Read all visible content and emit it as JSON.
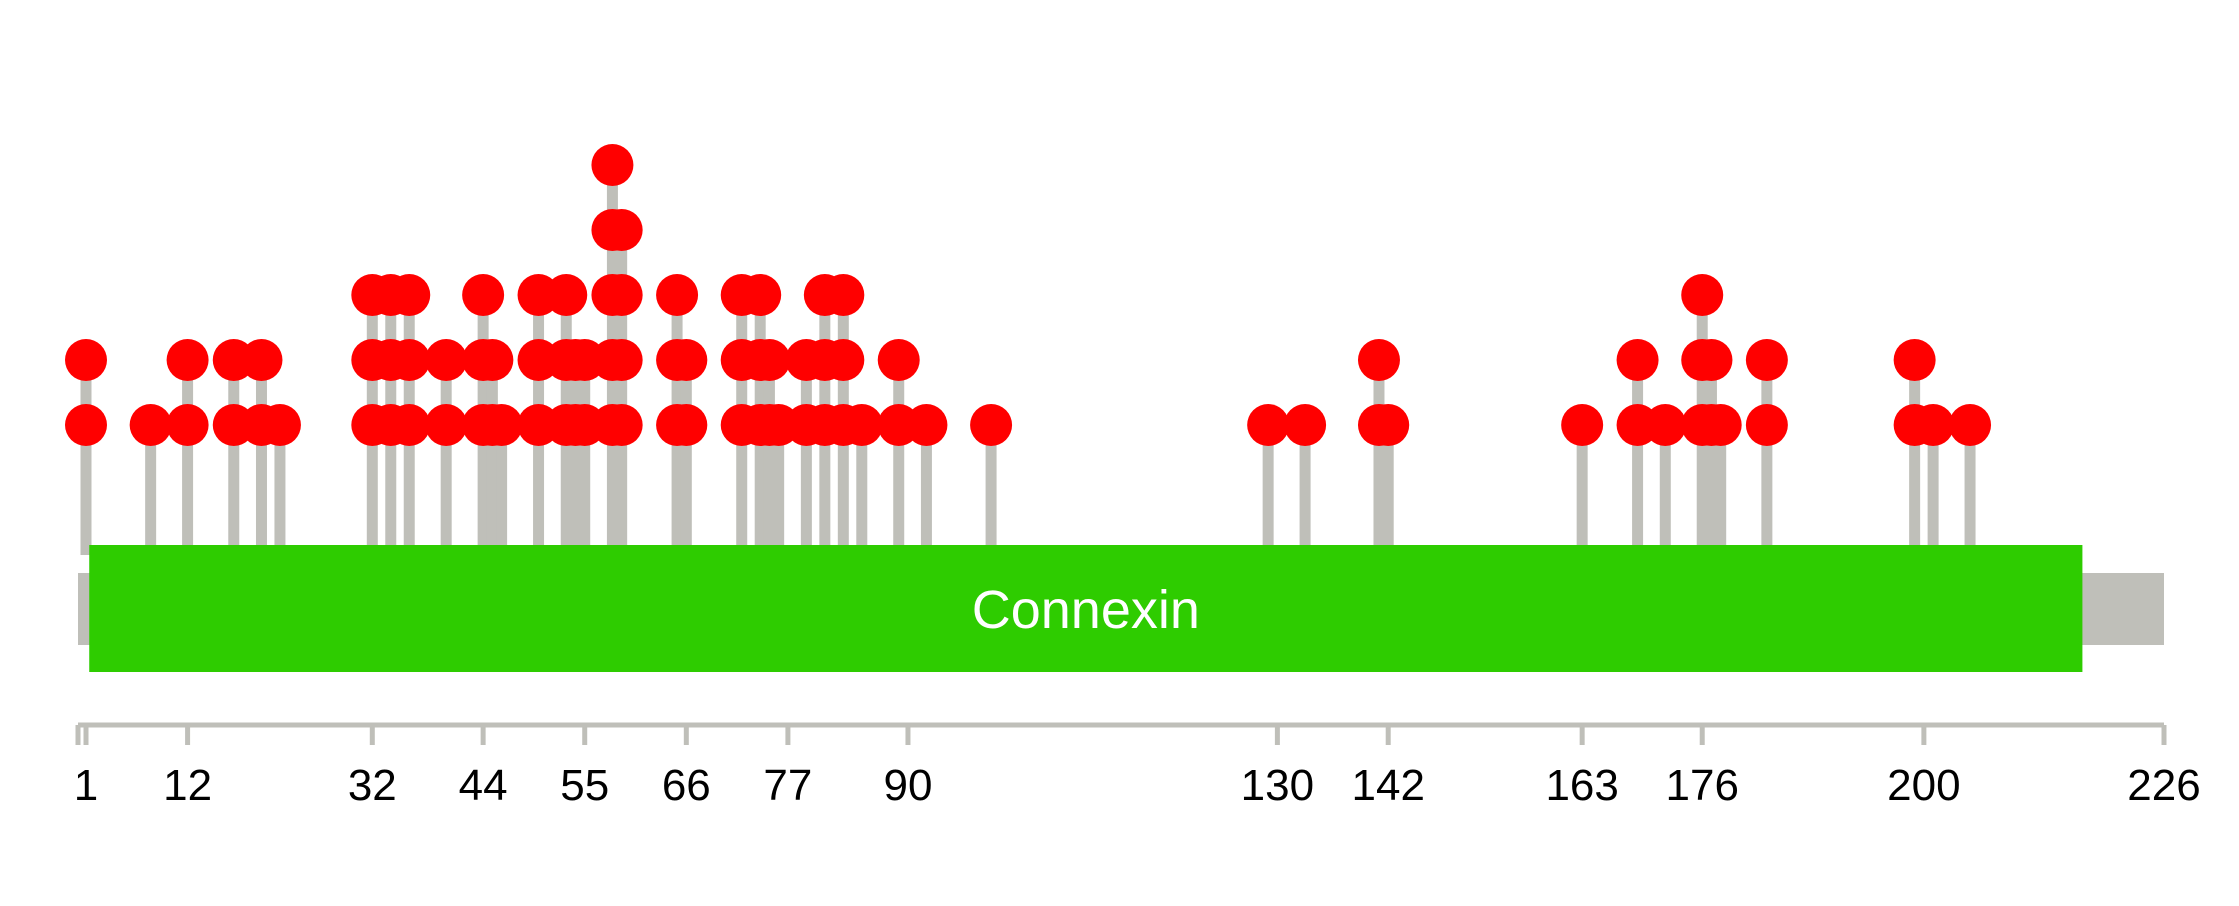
{
  "chart_data": {
    "type": "lollipop",
    "protein_length": 226,
    "xlim": [
      0,
      226
    ],
    "domains": [
      {
        "name": "Connexin",
        "start": 2,
        "end": 215,
        "color": "#2ecc00"
      }
    ],
    "tick_labels": [
      1,
      12,
      32,
      44,
      55,
      66,
      77,
      90,
      130,
      142,
      163,
      176,
      200,
      226
    ],
    "mutations": [
      {
        "pos": 1,
        "count": 2
      },
      {
        "pos": 8,
        "count": 1
      },
      {
        "pos": 12,
        "count": 2
      },
      {
        "pos": 17,
        "count": 2
      },
      {
        "pos": 20,
        "count": 2
      },
      {
        "pos": 22,
        "count": 1
      },
      {
        "pos": 32,
        "count": 3
      },
      {
        "pos": 34,
        "count": 3
      },
      {
        "pos": 36,
        "count": 3
      },
      {
        "pos": 40,
        "count": 2
      },
      {
        "pos": 44,
        "count": 3
      },
      {
        "pos": 45,
        "count": 2
      },
      {
        "pos": 46,
        "count": 1
      },
      {
        "pos": 50,
        "count": 3
      },
      {
        "pos": 53,
        "count": 3
      },
      {
        "pos": 54,
        "count": 2
      },
      {
        "pos": 55,
        "count": 2
      },
      {
        "pos": 58,
        "count": 5
      },
      {
        "pos": 59,
        "count": 4
      },
      {
        "pos": 65,
        "count": 3
      },
      {
        "pos": 66,
        "count": 2
      },
      {
        "pos": 72,
        "count": 3
      },
      {
        "pos": 74,
        "count": 3
      },
      {
        "pos": 75,
        "count": 2
      },
      {
        "pos": 76,
        "count": 1
      },
      {
        "pos": 79,
        "count": 2
      },
      {
        "pos": 81,
        "count": 3
      },
      {
        "pos": 83,
        "count": 3
      },
      {
        "pos": 85,
        "count": 1
      },
      {
        "pos": 89,
        "count": 2
      },
      {
        "pos": 92,
        "count": 1
      },
      {
        "pos": 99,
        "count": 1
      },
      {
        "pos": 129,
        "count": 1
      },
      {
        "pos": 133,
        "count": 1
      },
      {
        "pos": 141,
        "count": 2
      },
      {
        "pos": 142,
        "count": 1
      },
      {
        "pos": 163,
        "count": 1
      },
      {
        "pos": 169,
        "count": 2
      },
      {
        "pos": 172,
        "count": 1
      },
      {
        "pos": 176,
        "count": 3
      },
      {
        "pos": 177,
        "count": 2
      },
      {
        "pos": 178,
        "count": 1
      },
      {
        "pos": 183,
        "count": 2
      },
      {
        "pos": 199,
        "count": 2
      },
      {
        "pos": 201,
        "count": 1
      },
      {
        "pos": 205,
        "count": 1
      }
    ],
    "colors": {
      "backbone": "#bfbfb9",
      "stem": "#bfbfb9",
      "dot": "#ff0000",
      "axis": "#bfbfb9",
      "domain_text": "#ffffff",
      "tick_text": "#000000"
    }
  }
}
